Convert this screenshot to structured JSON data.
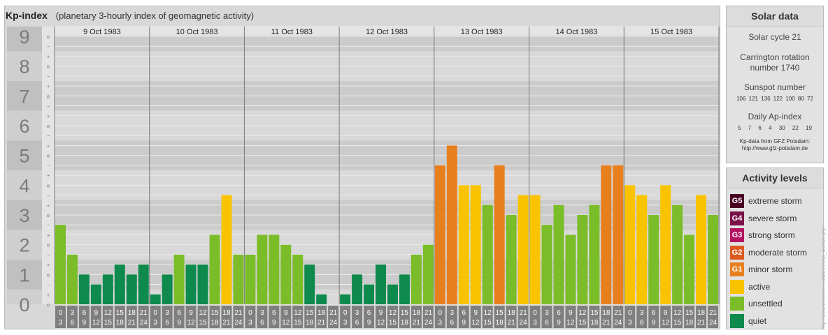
{
  "header": {
    "title": "Kp-index",
    "subtitle": "(planetary 3-hourly index of geomagnetic activity)"
  },
  "colors": {
    "quiet": "#0d8a4c",
    "unsettled": "#7bbd28",
    "active": "#f9c300",
    "g1": "#e87f1e",
    "g2": "#dc5a20",
    "g3": "#b4125f",
    "g4": "#7b1048",
    "g5": "#4a0024"
  },
  "chart_data": {
    "type": "bar",
    "y_ticks": [
      "0",
      "1",
      "2",
      "3",
      "4",
      "5",
      "6",
      "7",
      "8",
      "9"
    ],
    "ylim": [
      0,
      9.33
    ],
    "sub_marks": [
      "o",
      "+",
      "−",
      "o",
      "+",
      "−",
      "o",
      "+",
      "−",
      "o",
      "+",
      "−",
      "o",
      "+",
      "−",
      "o",
      "+",
      "−",
      "o",
      "+",
      "−",
      "o",
      "+",
      "−",
      "o",
      "+",
      "−",
      "o"
    ],
    "hour_starts": [
      "0",
      "3",
      "6",
      "9",
      "12",
      "15",
      "18",
      "21"
    ],
    "hour_ends": [
      "3",
      "6",
      "9",
      "12",
      "15",
      "18",
      "21",
      "24"
    ],
    "days": [
      {
        "date": "9 Oct 1983",
        "values": [
          2.667,
          1.667,
          1.0,
          0.667,
          1.0,
          1.333,
          1.0,
          1.333
        ],
        "levels": [
          "unsettled",
          "unsettled",
          "quiet",
          "quiet",
          "quiet",
          "quiet",
          "quiet",
          "quiet"
        ]
      },
      {
        "date": "10 Oct 1983",
        "values": [
          0.333,
          1.0,
          1.667,
          1.333,
          1.333,
          2.333,
          3.667,
          1.667
        ],
        "levels": [
          "quiet",
          "quiet",
          "unsettled",
          "quiet",
          "quiet",
          "unsettled",
          "active",
          "unsettled"
        ]
      },
      {
        "date": "11 Oct 1983",
        "values": [
          1.667,
          2.333,
          2.333,
          2.0,
          1.667,
          1.333,
          0.333,
          0.0
        ],
        "levels": [
          "unsettled",
          "unsettled",
          "unsettled",
          "unsettled",
          "unsettled",
          "quiet",
          "quiet",
          "quiet"
        ]
      },
      {
        "date": "12 Oct 1983",
        "values": [
          0.333,
          1.0,
          0.667,
          1.333,
          0.667,
          1.0,
          1.667,
          2.0
        ],
        "levels": [
          "quiet",
          "quiet",
          "quiet",
          "quiet",
          "quiet",
          "quiet",
          "unsettled",
          "unsettled"
        ]
      },
      {
        "date": "13 Oct 1983",
        "values": [
          4.667,
          5.333,
          4.0,
          4.0,
          3.333,
          4.667,
          3.0,
          3.667
        ],
        "levels": [
          "g1",
          "g1",
          "active",
          "active",
          "unsettled",
          "g1",
          "unsettled",
          "active"
        ]
      },
      {
        "date": "14 Oct 1983",
        "values": [
          3.667,
          2.667,
          3.333,
          2.333,
          3.0,
          3.333,
          4.667,
          4.667
        ],
        "levels": [
          "active",
          "unsettled",
          "unsettled",
          "unsettled",
          "unsettled",
          "unsettled",
          "g1",
          "g1"
        ]
      },
      {
        "date": "15 Oct 1983",
        "values": [
          4.0,
          3.667,
          3.0,
          4.0,
          3.333,
          2.333,
          3.667,
          3.0
        ],
        "levels": [
          "active",
          "active",
          "unsettled",
          "active",
          "unsettled",
          "unsettled",
          "active",
          "unsettled"
        ]
      }
    ]
  },
  "solar": {
    "heading": "Solar data",
    "cycle": "Solar cycle 21",
    "carrington": "Carrington rotation number 1740",
    "sunspot_label": "Sunspot number",
    "sunspot_values": "106 121 136 122 100 80 72",
    "ap_label": "Daily Ap-index",
    "ap_values": "5 7 6 4 30 22 19",
    "credit1": "Kp-data from GFZ Potsdam:",
    "credit2": "http://www.gfz-potsdam.de"
  },
  "levels": {
    "heading": "Activity levels",
    "items": [
      {
        "code": "G5",
        "label": "extreme storm",
        "color": "#4a0024"
      },
      {
        "code": "G4",
        "label": "severe storm",
        "color": "#7b1048"
      },
      {
        "code": "G3",
        "label": "strong storm",
        "color": "#b4125f"
      },
      {
        "code": "G2",
        "label": "moderate storm",
        "color": "#dc5a20"
      },
      {
        "code": "G1",
        "label": "minor storm",
        "color": "#e87f1e"
      },
      {
        "code": "",
        "label": "active",
        "color": "#f9c300"
      },
      {
        "code": "",
        "label": "unsettled",
        "color": "#7bbd28"
      },
      {
        "code": "",
        "label": "quiet",
        "color": "#0d8a4c"
      }
    ]
  },
  "watermark": "http://www.theusner.eu/afarchiv/kp_archive.php"
}
